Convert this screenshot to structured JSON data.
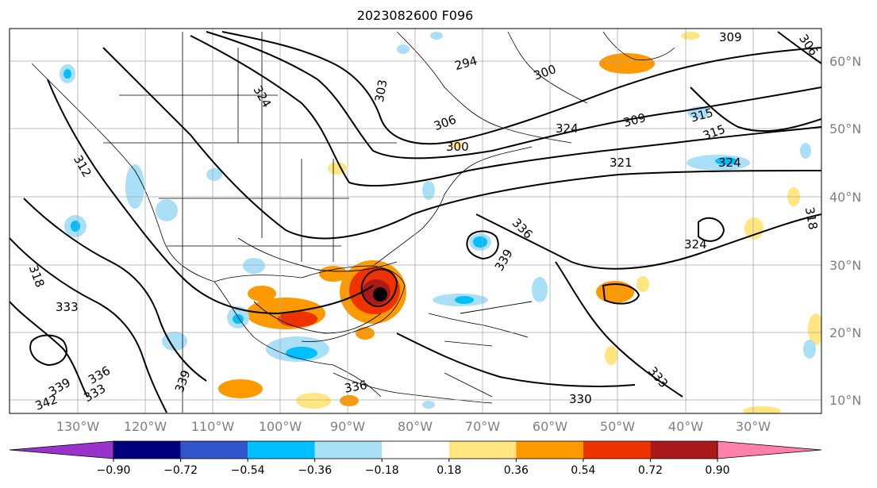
{
  "title": "2023082600 F096",
  "map": {
    "lat_labels": [
      "60°N",
      "50°N",
      "40°N",
      "30°N",
      "20°N",
      "10°N"
    ],
    "lon_labels": [
      "130°W",
      "120°W",
      "110°W",
      "100°W",
      "90°W",
      "80°W",
      "70°W",
      "60°W",
      "50°W",
      "40°W",
      "30°W"
    ],
    "contour_labels": [
      "309",
      "306",
      "294",
      "300",
      "303",
      "312",
      "324",
      "306",
      "309",
      "315",
      "315",
      "324",
      "321",
      "318",
      "318",
      "333",
      "336",
      "339",
      "342",
      "339",
      "336",
      "333",
      "339",
      "324",
      "330",
      "333",
      "336",
      "324",
      "300"
    ],
    "storm_marker": "tropical-cyclone-center"
  },
  "colorbar": {
    "ticks": [
      "−0.90",
      "−0.72",
      "−0.54",
      "−0.36",
      "−0.18",
      "0.18",
      "0.36",
      "0.54",
      "0.72",
      "0.90"
    ],
    "colors": [
      "#9933cc",
      "#000080",
      "#3355cc",
      "#00bfff",
      "#aadff8",
      "#ffffff",
      "#ffe680",
      "#ff9900",
      "#ee3300",
      "#aa1a1a",
      "#ff80a8"
    ]
  }
}
